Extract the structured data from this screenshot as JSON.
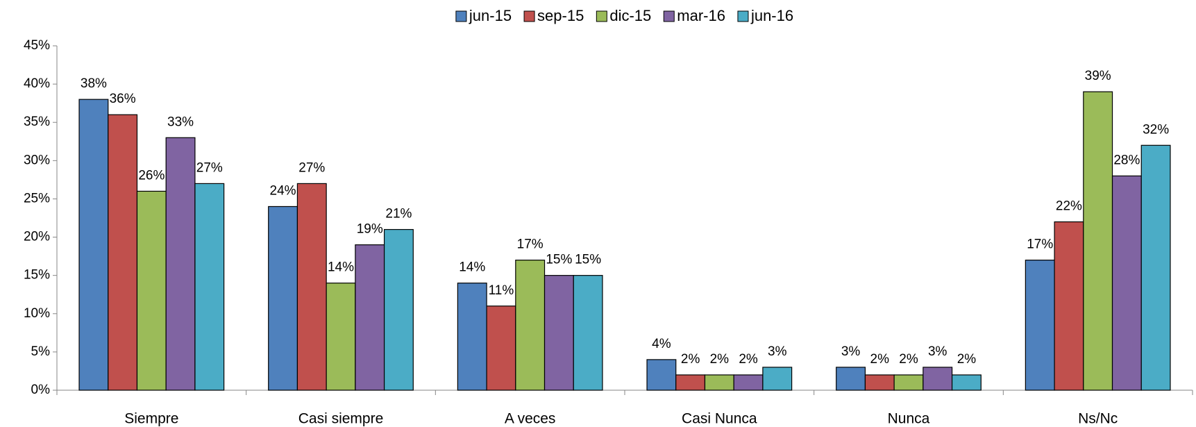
{
  "chart_data": {
    "type": "bar",
    "categories": [
      "Siempre",
      "Casi siempre",
      "A veces",
      "Casi Nunca",
      "Nunca",
      "Ns/Nc"
    ],
    "series": [
      {
        "name": "jun-15",
        "color": "#4F81BD",
        "values": [
          38,
          24,
          14,
          4,
          3,
          17
        ],
        "value_labels": [
          "38%",
          "24%",
          "14%",
          "4%",
          "3%",
          "17%"
        ]
      },
      {
        "name": "sep-15",
        "color": "#C0504D",
        "values": [
          36,
          27,
          11,
          2,
          2,
          22
        ],
        "value_labels": [
          "36%",
          "27%",
          "11%",
          "2%",
          "2%",
          "22%"
        ]
      },
      {
        "name": "dic-15",
        "color": "#9BBB59",
        "values": [
          26,
          14,
          17,
          2,
          2,
          39
        ],
        "value_labels": [
          "26%",
          "14%",
          "17%",
          "2%",
          "2%",
          "39%"
        ]
      },
      {
        "name": "mar-16",
        "color": "#8064A2",
        "values": [
          33,
          19,
          15,
          2,
          3,
          28
        ],
        "value_labels": [
          "33%",
          "19%",
          "15%",
          "2%",
          "3%",
          "28%"
        ]
      },
      {
        "name": "jun-16",
        "color": "#4BACC6",
        "values": [
          27,
          21,
          15,
          3,
          2,
          32
        ],
        "value_labels": [
          "27%",
          "21%",
          "15%",
          "3%",
          "2%",
          "32%"
        ]
      }
    ],
    "ylim": [
      0,
      45
    ],
    "yticks": [
      {
        "value": 0,
        "label": "0%"
      },
      {
        "value": 5,
        "label": "5%"
      },
      {
        "value": 10,
        "label": "10%"
      },
      {
        "value": 15,
        "label": "15%"
      },
      {
        "value": 20,
        "label": "20%"
      },
      {
        "value": 25,
        "label": "25%"
      },
      {
        "value": 30,
        "label": "30%"
      },
      {
        "value": 35,
        "label": "35%"
      },
      {
        "value": 40,
        "label": "40%"
      },
      {
        "value": 45,
        "label": "45%"
      }
    ],
    "legend": "top"
  }
}
